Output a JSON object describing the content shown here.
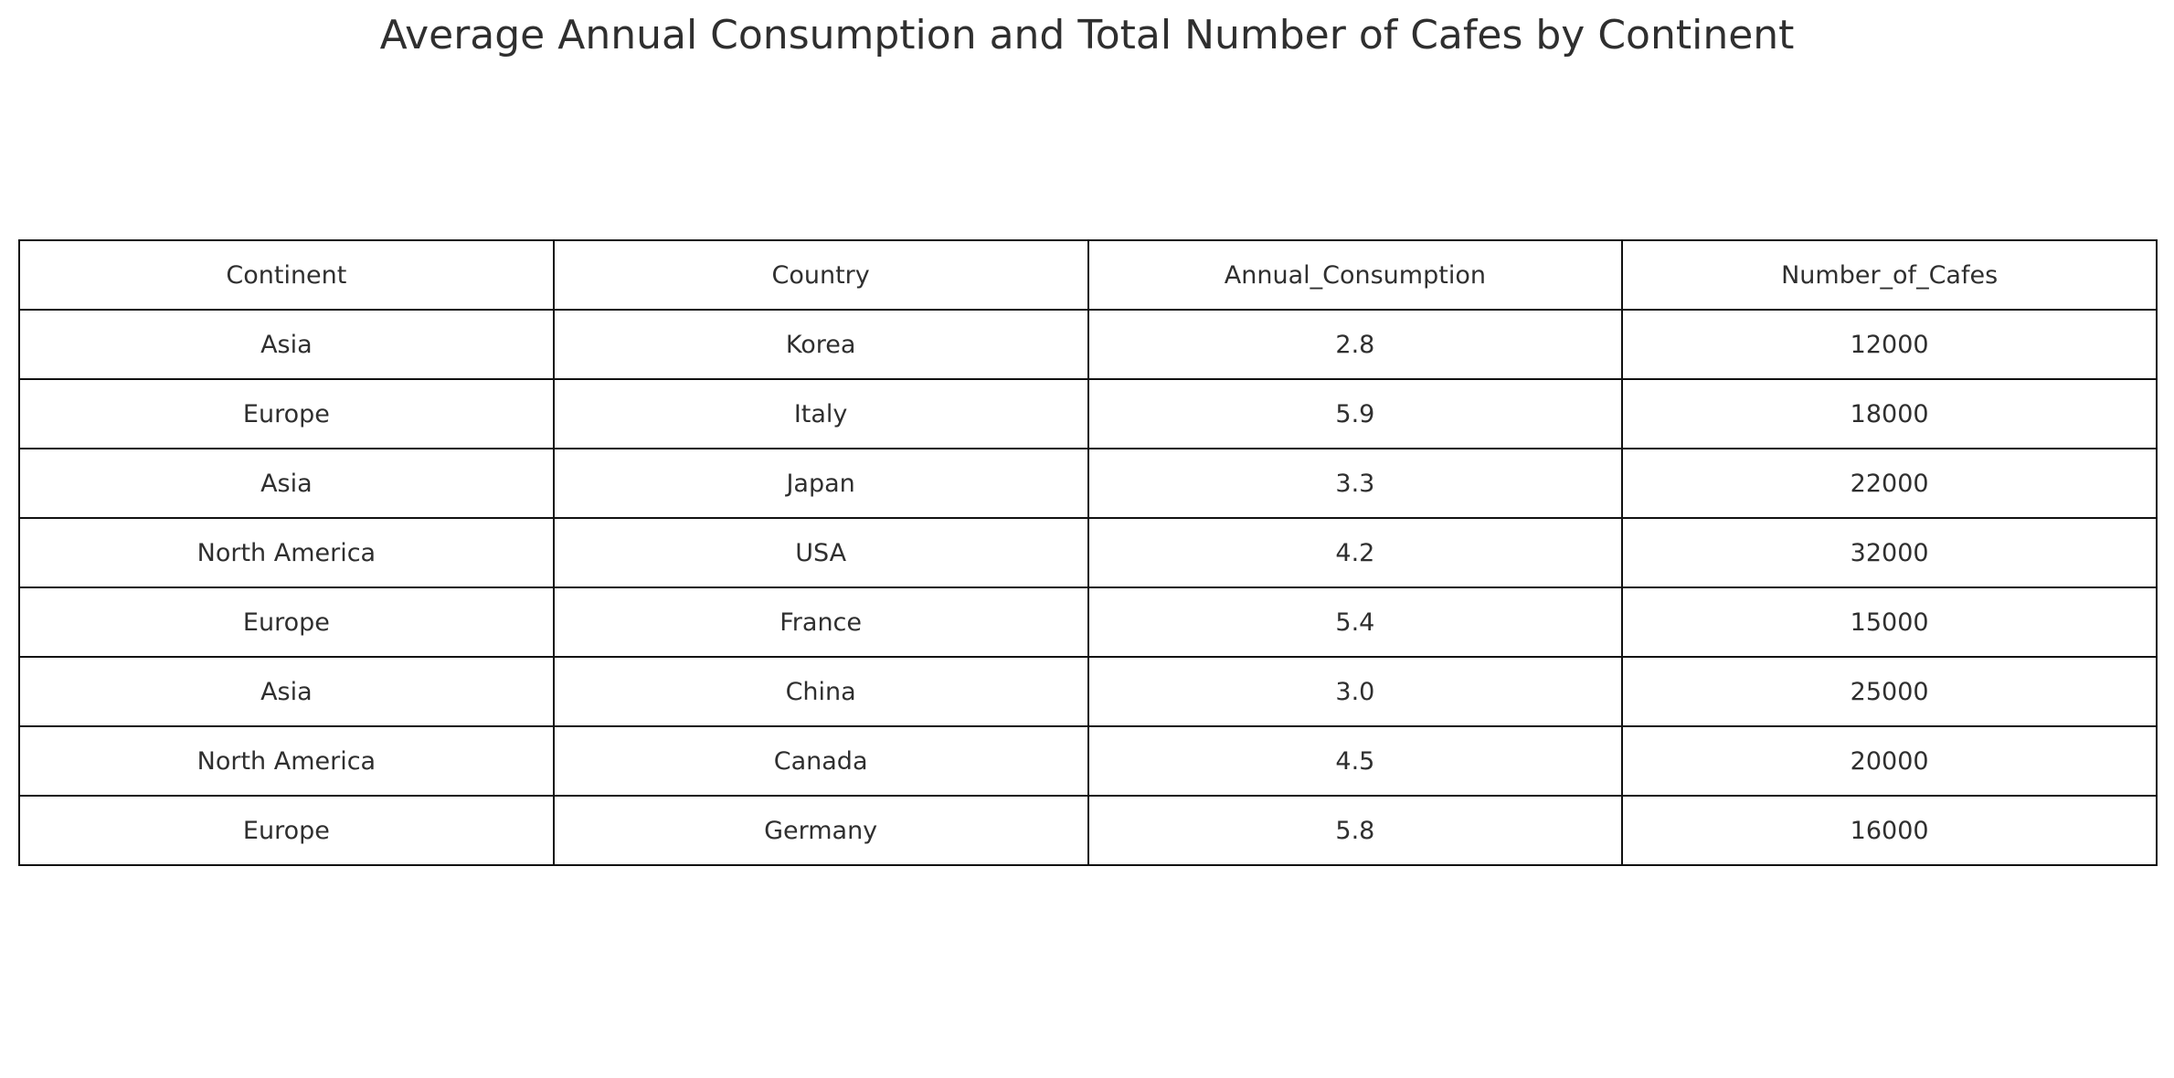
{
  "chart_data": {
    "type": "table",
    "title": "Average Annual Consumption and Total Number of Cafes by Continent",
    "columns": [
      "Continent",
      "Country",
      "Annual_Consumption",
      "Number_of_Cafes"
    ],
    "rows": [
      [
        "Asia",
        "Korea",
        "2.8",
        "12000"
      ],
      [
        "Europe",
        "Italy",
        "5.9",
        "18000"
      ],
      [
        "Asia",
        "Japan",
        "3.3",
        "22000"
      ],
      [
        "North America",
        "USA",
        "4.2",
        "32000"
      ],
      [
        "Europe",
        "France",
        "5.4",
        "15000"
      ],
      [
        "Asia",
        "China",
        "3.0",
        "25000"
      ],
      [
        "North America",
        "Canada",
        "4.5",
        "20000"
      ],
      [
        "Europe",
        "Germany",
        "5.8",
        "16000"
      ]
    ]
  }
}
